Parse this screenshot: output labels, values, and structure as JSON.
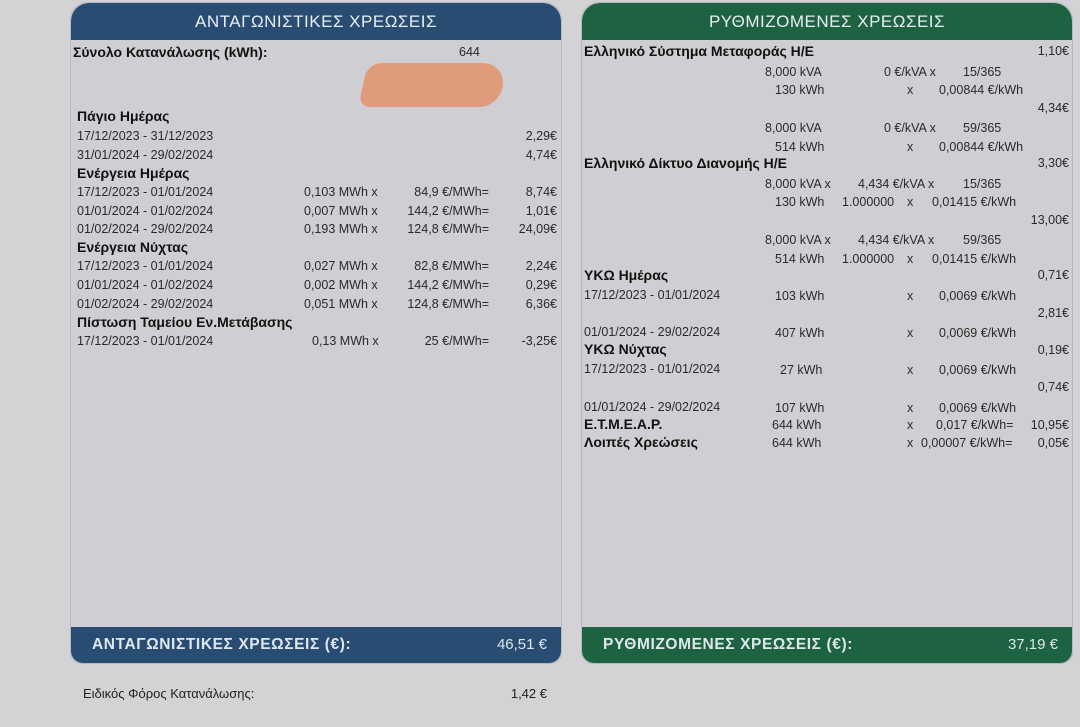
{
  "competitive": {
    "header": "ΑΝΤΑΓΩΝΙΣΤΙΚΕΣ ΧΡΕΩΣΕΙΣ",
    "consumption_label": "Σύνολο Κατανάλωσης (kWh):",
    "consumption_value": "644",
    "fixed_day": {
      "title": "Πάγιο Ημέρας",
      "rows": [
        {
          "period": "17/12/2023 - 31/12/2023",
          "amount": "2,29€"
        },
        {
          "period": "31/01/2024 - 29/02/2024",
          "amount": "4,74€"
        }
      ]
    },
    "energy_day": {
      "title": "Ενέργεια Ημέρας",
      "rows": [
        {
          "period": "17/12/2023 - 01/01/2024",
          "qty": "0,103 MWh x",
          "rate": "84,9 €/MWh=",
          "amount": "8,74€"
        },
        {
          "period": "01/01/2024 - 01/02/2024",
          "qty": "0,007 MWh x",
          "rate": "144,2 €/MWh=",
          "amount": "1,01€"
        },
        {
          "period": "01/02/2024 - 29/02/2024",
          "qty": "0,193 MWh x",
          "rate": "124,8 €/MWh=",
          "amount": "24,09€"
        }
      ]
    },
    "energy_night": {
      "title": "Ενέργεια Νύχτας",
      "rows": [
        {
          "period": "17/12/2023 - 01/01/2024",
          "qty": "0,027 MWh x",
          "rate": "82,8 €/MWh=",
          "amount": "2,24€"
        },
        {
          "period": "01/01/2024 - 01/02/2024",
          "qty": "0,002 MWh x",
          "rate": "144,2 €/MWh=",
          "amount": "0,29€"
        },
        {
          "period": "01/02/2024 - 29/02/2024",
          "qty": "0,051 MWh x",
          "rate": "124,8 €/MWh=",
          "amount": "6,36€"
        }
      ]
    },
    "credit": {
      "title": "Πίστωση Ταμείου Εν.Μετάβασης",
      "rows": [
        {
          "period": "17/12/2023 - 01/01/2024",
          "qty": "0,13 MWh x",
          "rate": "25 €/MWh=",
          "amount": "-3,25€"
        }
      ]
    },
    "footer_label": "ΑΝΤΑΓΩΝΙΣΤΙΚΕΣ ΧΡΕΩΣΕΙΣ (€):",
    "footer_value": "46,51 €"
  },
  "regulated": {
    "header": "ΡΥΘΜΙΖΟΜΕΝΕΣ ΧΡΕΩΣΕΙΣ",
    "transmission": {
      "title": "Ελληνικό Σύστημα Μεταφοράς Η/Ε",
      "total": "1,10€",
      "l1": {
        "a": "8,000 kVA",
        "b": "0 €/kVA x",
        "c": "15/365"
      },
      "l2": {
        "a": "130 kWh",
        "x": "x",
        "c": "0,00844 €/kWh"
      },
      "total2": "4,34€",
      "l3": {
        "a": "8,000 kVA",
        "b": "0 €/kVA x",
        "c": "59/365"
      },
      "l4": {
        "a": "514 kWh",
        "x": "x",
        "c": "0,00844 €/kWh"
      }
    },
    "distribution": {
      "title": "Ελληνικό Δίκτυο Διανομής Η/Ε",
      "total": "3,30€",
      "l1": {
        "a": "8,000 kVA x",
        "b": "4,434 €/kVA x",
        "c": "15/365"
      },
      "l2": {
        "a": "130 kWh",
        "f": "1.000000",
        "x": "x",
        "c": "0,01415 €/kWh"
      },
      "total2": "13,00€",
      "l3": {
        "a": "8,000 kVA x",
        "b": "4,434 €/kVA x",
        "c": "59/365"
      },
      "l4": {
        "a": "514 kWh",
        "f": "1.000000",
        "x": "x",
        "c": "0,01415 €/kWh"
      }
    },
    "yko_day": {
      "title": "ΥΚΩ Ημέρας",
      "total": "0,71€",
      "r1": {
        "period": "17/12/2023 -  01/01/2024",
        "a": "103 kWh",
        "x": "x",
        "c": "0,0069 €/kWh"
      },
      "total2": "2,81€",
      "r2": {
        "period": "01/01/2024 -  29/02/2024",
        "a": "407 kWh",
        "x": "x",
        "c": "0,0069 €/kWh"
      }
    },
    "yko_night": {
      "title": "ΥΚΩ Νύχτας",
      "total": "0,19€",
      "r1": {
        "period": "17/12/2023 -  01/01/2024",
        "a": "27 kWh",
        "x": "x",
        "c": "0,0069 €/kWh"
      },
      "total2": "0,74€",
      "r2": {
        "period": "01/01/2024 -  29/02/2024",
        "a": "107 kWh",
        "x": "x",
        "c": "0,0069 €/kWh"
      }
    },
    "etmear": {
      "title": "Ε.Τ.Μ.Ε.Α.Ρ.",
      "a": "644 kWh",
      "x": "x",
      "c": "0,017 €/kWh=",
      "amount": "10,95€"
    },
    "other": {
      "title": "Λοιπές Χρεώσεις",
      "a": "644 kWh",
      "x": "x",
      "c": "0,00007 €/kWh=",
      "amount": "0,05€"
    },
    "footer_label": "ΡΥΘΜΙΖΟΜΕΝΕΣ ΧΡΕΩΣΕΙΣ (€):",
    "footer_value": "37,19 €"
  },
  "tax": {
    "label": "Ειδικός Φόρος Κατανάλωσης:",
    "value": "1,42 €"
  },
  "colors": {
    "competitive_accent": "#294c73",
    "regulated_accent": "#1d6342",
    "redaction": "#e09a7c"
  }
}
